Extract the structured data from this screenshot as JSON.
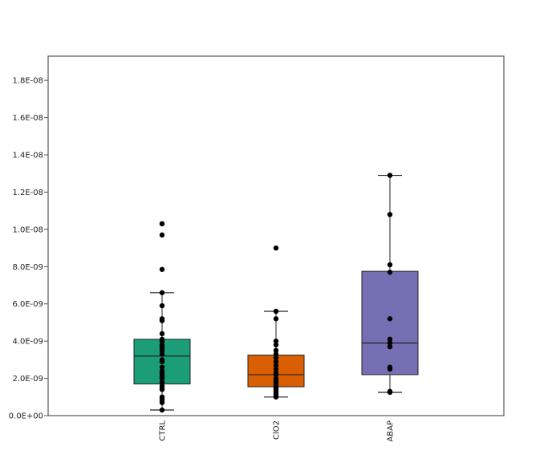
{
  "chart_data": {
    "type": "box",
    "categories": [
      "CTRL",
      "ClO2",
      "ABAP"
    ],
    "ylim": [
      0,
      1.93e-08
    ],
    "yticks": [
      0,
      2e-09,
      4e-09,
      6e-09,
      8e-09,
      1e-08,
      1.2e-08,
      1.4e-08,
      1.6e-08,
      1.8e-08
    ],
    "ytick_labels": [
      "0.0E+00",
      "2.0E-09",
      "4.0E-09",
      "6.0E-09",
      "8.0E-09",
      "1.0E-08",
      "1.2E-08",
      "1.4E-08",
      "1.6E-08",
      "1.8E-08"
    ],
    "boxes": [
      {
        "name": "CTRL",
        "color": "#1b9e77",
        "q1": 1.7e-09,
        "median": 3.2e-09,
        "q3": 4.1e-09,
        "whisker_low": 3e-10,
        "whisker_high": 6.6e-09,
        "points": [
          1.03e-08,
          1.03e-08,
          9.7e-09,
          7.85e-09,
          6.6e-09,
          5.9e-09,
          5.2e-09,
          5.1e-09,
          4.4e-09,
          4.1e-09,
          4e-09,
          3.8e-09,
          3.7e-09,
          3.6e-09,
          3.5e-09,
          3.3e-09,
          3e-09,
          2.9e-09,
          2.6e-09,
          2.4e-09,
          2.3e-09,
          2.2e-09,
          2.1e-09,
          2e-09,
          1.8e-09,
          1.6e-09,
          1.5e-09,
          1.4e-09,
          1e-09,
          9e-10,
          8e-10,
          7e-10,
          3e-10
        ]
      },
      {
        "name": "ClO2",
        "color": "#d95f02",
        "q1": 1.55e-09,
        "median": 2.2e-09,
        "q3": 3.25e-09,
        "whisker_low": 1e-09,
        "whisker_high": 5.6e-09,
        "points": [
          9e-09,
          5.6e-09,
          5.2e-09,
          4e-09,
          3.8e-09,
          3.5e-09,
          3.3e-09,
          3.1e-09,
          2.9e-09,
          2.7e-09,
          2.5e-09,
          2.3e-09,
          2.2e-09,
          2e-09,
          1.9e-09,
          1.8e-09,
          1.7e-09,
          1.6e-09,
          1.5e-09,
          1.4e-09,
          1.3e-09,
          1.2e-09,
          1.1e-09,
          1.05e-09,
          1e-09
        ]
      },
      {
        "name": "ABAP",
        "color": "#7570b3",
        "q1": 2.2e-09,
        "median": 3.9e-09,
        "q3": 7.75e-09,
        "whisker_low": 1.25e-09,
        "whisker_high": 1.29e-08,
        "points": [
          1.29e-08,
          1.08e-08,
          8.1e-09,
          7.7e-09,
          5.2e-09,
          4.1e-09,
          3.9e-09,
          3.7e-09,
          2.6e-09,
          2.5e-09,
          1.3e-09,
          1.25e-09
        ]
      }
    ]
  }
}
